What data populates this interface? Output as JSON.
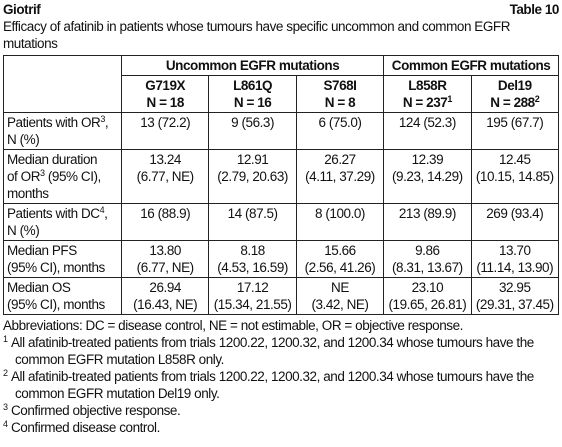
{
  "header": {
    "title": "Giotrif",
    "table_number": "Table 10",
    "caption": "Efficacy of afatinib in patients whose tumours have specific uncommon and common EGFR mutations"
  },
  "table": {
    "groups": [
      {
        "label": "Uncommon EGFR mutations",
        "span": 3
      },
      {
        "label": "Common EGFR mutations",
        "span": 2
      }
    ],
    "columns": [
      {
        "name": "G719X",
        "n": [
          "N = 18"
        ]
      },
      {
        "name": "L861Q",
        "n": [
          "N = 16"
        ]
      },
      {
        "name": "S768I",
        "n": [
          "N = 8"
        ]
      },
      {
        "name": "L858R",
        "n": [
          "N = 237",
          {
            "sup": "1"
          }
        ]
      },
      {
        "name": "Del19",
        "n": [
          "N = 288",
          {
            "sup": "2"
          }
        ]
      }
    ],
    "rows": [
      {
        "label": [
          [
            "Patients with OR",
            {
              "sup": "3"
            },
            ","
          ],
          [
            "N (%)"
          ]
        ],
        "cells": [
          [
            "13 (72.2)"
          ],
          [
            "9 (56.3)"
          ],
          [
            "6 (75.0)"
          ],
          [
            "124 (52.3)"
          ],
          [
            "195 (67.7)"
          ]
        ]
      },
      {
        "label": [
          [
            "Median duration"
          ],
          [
            "of OR",
            {
              "sup": "3"
            },
            " (95% CI),"
          ],
          [
            "months"
          ]
        ],
        "cells": [
          [
            "13.24",
            "(6.77, NE)"
          ],
          [
            "12.91",
            "(2.79, 20.63)"
          ],
          [
            "26.27",
            "(4.11, 37.29)"
          ],
          [
            "12.39",
            "(9.23, 14.29)"
          ],
          [
            "12.45",
            "(10.15, 14.85)"
          ]
        ]
      },
      {
        "label": [
          [
            "Patients with DC",
            {
              "sup": "4"
            },
            ","
          ],
          [
            "N (%)"
          ]
        ],
        "cells": [
          [
            "16 (88.9)"
          ],
          [
            "14 (87.5)"
          ],
          [
            "8 (100.0)"
          ],
          [
            "213 (89.9)"
          ],
          [
            "269 (93.4)"
          ]
        ]
      },
      {
        "label": [
          [
            "Median PFS"
          ],
          [
            "(95% CI), months"
          ]
        ],
        "cells": [
          [
            "13.80",
            "(6.77, NE)"
          ],
          [
            "8.18",
            "(4.53, 16.59)"
          ],
          [
            "15.66",
            "(2.56, 41.26)"
          ],
          [
            "9.86",
            "(8.31, 13.67)"
          ],
          [
            "13.70",
            "(11.14, 13.90)"
          ]
        ]
      },
      {
        "label": [
          [
            "Median OS"
          ],
          [
            "(95% CI), months"
          ]
        ],
        "cells": [
          [
            "26.94",
            "(16.43, NE)"
          ],
          [
            "17.12",
            "(15.34, 21.55)"
          ],
          [
            "NE",
            "(3.42, NE)"
          ],
          [
            "23.10",
            "(19.65, 26.81)"
          ],
          [
            "32.95",
            "(29.31, 37.45)"
          ]
        ]
      }
    ]
  },
  "footnotes": [
    {
      "text": "Abbreviations: DC = disease control, NE = not estimable, OR = objective response."
    },
    {
      "mark": "1",
      "text": "All afatinib-treated patients from trials 1200.22, 1200.32, and 1200.34 whose tumours have the common EGFR mutation L858R only."
    },
    {
      "mark": "2",
      "text": "All afatinib-treated patients from trials 1200.22, 1200.32, and 1200.34 whose tumours have the common EGFR mutation Del19 only."
    },
    {
      "mark": "3",
      "text": "Confirmed objective response."
    },
    {
      "mark": "4",
      "text": "Confirmed disease control."
    }
  ]
}
